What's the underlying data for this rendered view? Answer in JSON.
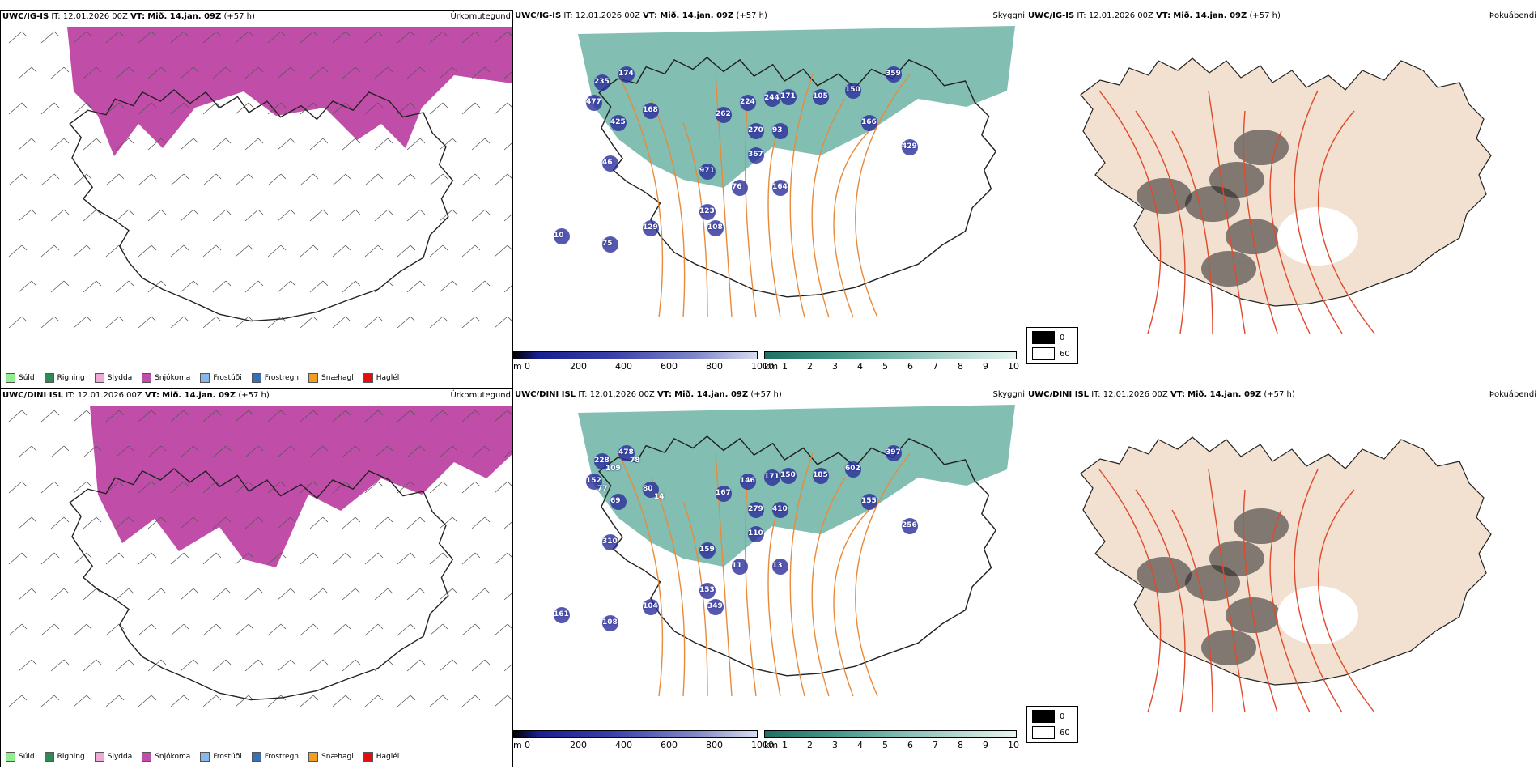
{
  "rows": [
    {
      "model": "UWC/IG-IS",
      "it_label": "IT:",
      "it_value": "12.01.2026 00Z",
      "vt_label": "VT:",
      "vt_value": "Mið. 14.jan. 09Z",
      "lead": "(+57 h)",
      "panels": {
        "precip_type": "Úrkomutegund",
        "visibility": "Skyggni",
        "fog_index": "Þokuábendi"
      },
      "cloud_labels": [
        "235",
        "174",
        "477",
        "168",
        "425",
        "262",
        "224",
        "244",
        "171",
        "105",
        "150",
        "359",
        "270",
        "93",
        "166",
        "429",
        "367",
        "46",
        "971",
        "76",
        "164",
        "123",
        "108",
        "129",
        "75",
        "10"
      ]
    },
    {
      "model": "UWC/DINI ISL",
      "it_label": "IT:",
      "it_value": "12.01.2026 00Z",
      "vt_label": "VT:",
      "vt_value": "Mið. 14.jan. 09Z",
      "lead": "(+57 h)",
      "panels": {
        "precip_type": "Úrkomutegund",
        "visibility": "Skyggni",
        "fog_index": "Þokuábendi"
      },
      "cloud_labels": [
        "228",
        "478",
        "152",
        "80",
        "69",
        "167",
        "146",
        "171",
        "150",
        "185",
        "602",
        "397",
        "279",
        "410",
        "155",
        "256",
        "110",
        "310",
        "159",
        "11",
        "13",
        "153",
        "349",
        "104",
        "108",
        "161",
        "109",
        "78",
        "77",
        "14"
      ]
    }
  ],
  "precip_legend": [
    {
      "label": "Súld",
      "color": "#90ee90"
    },
    {
      "label": "Rigning",
      "color": "#2e8b57"
    },
    {
      "label": "Slydda",
      "color": "#f0a8d8"
    },
    {
      "label": "Snjókoma",
      "color": "#c04ea8"
    },
    {
      "label": "Frostúði",
      "color": "#87b8e8"
    },
    {
      "label": "Frostregn",
      "color": "#3a6fb8"
    },
    {
      "label": "Snæhagl",
      "color": "#f0a020"
    },
    {
      "label": "Haglél",
      "color": "#e01010"
    }
  ],
  "cloudbase_bar": {
    "unit": "m",
    "ticks": [
      "0",
      "200",
      "400",
      "600",
      "800",
      "1000"
    ]
  },
  "visibility_bar": {
    "unit": "km",
    "ticks": [
      "1",
      "2",
      "3",
      "4",
      "5",
      "6",
      "7",
      "8",
      "9",
      "10"
    ]
  },
  "fog_legend": [
    {
      "label": "0",
      "color": "#000000"
    },
    {
      "label": "60",
      "color": "#ffffff"
    }
  ],
  "colors": {
    "snow": "#c04ea8",
    "vis": "#5aa89a",
    "cloud": "#2a2e9a",
    "road": "#e88a3a",
    "roadred": "#e04a2a",
    "land": "#f2e0d0"
  }
}
